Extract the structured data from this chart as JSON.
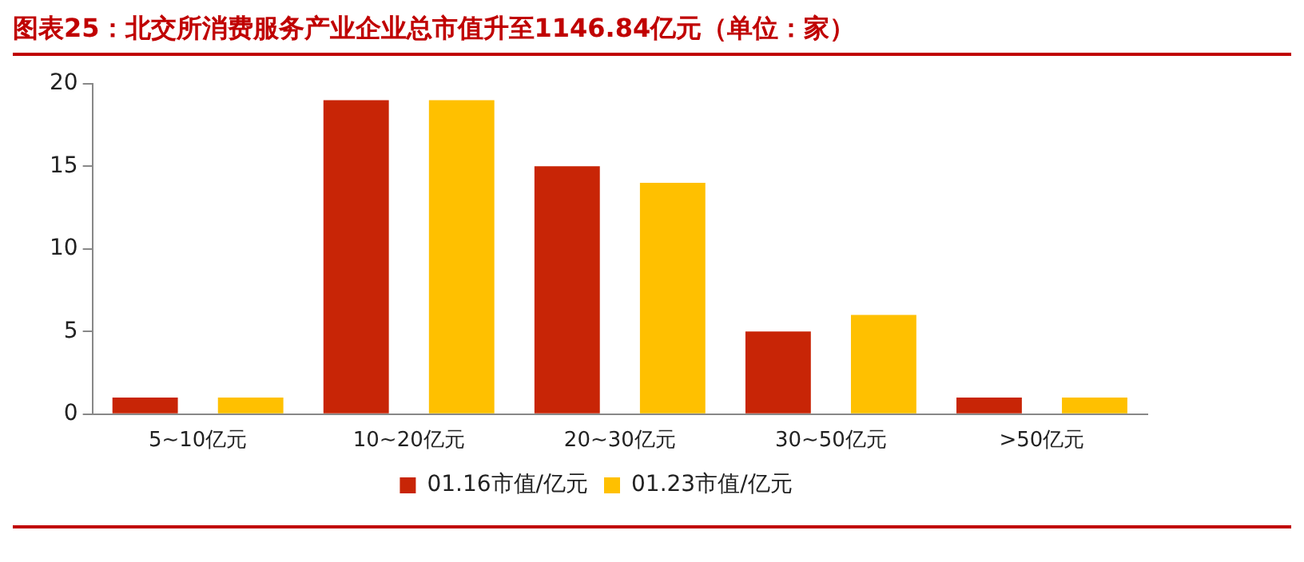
{
  "chart_data": {
    "type": "bar",
    "title": "图表25：北交所消费服务产业企业总市值升至1146.84亿元（单位：家）",
    "categories": [
      "5~10亿元",
      "10~20亿元",
      "20~30亿元",
      "30~50亿元",
      ">50亿元"
    ],
    "series": [
      {
        "name": "01.16市值/亿元",
        "color": "#c82506",
        "values": [
          1,
          19,
          15,
          5,
          1
        ]
      },
      {
        "name": "01.23市值/亿元",
        "color": "#ffc000",
        "values": [
          1,
          19,
          14,
          6,
          1
        ]
      }
    ],
    "ylim": [
      0,
      20
    ],
    "yticks": [
      0,
      5,
      10,
      15,
      20
    ],
    "grid": false,
    "legend": "bottom"
  }
}
